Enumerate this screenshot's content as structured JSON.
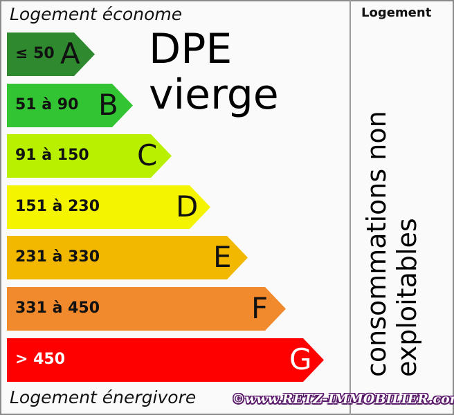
{
  "header": {
    "top_label": "Logement économe",
    "bottom_label": "Logement énergivore",
    "column_header": "Logement"
  },
  "classes": [
    {
      "letter": "A",
      "range": "≤ 50",
      "color": "#2f8a2f",
      "text_color": "#111111"
    },
    {
      "letter": "B",
      "range": "51 à 90",
      "color": "#33c433",
      "text_color": "#111111"
    },
    {
      "letter": "C",
      "range": "91 à 150",
      "color": "#b8f000",
      "text_color": "#111111"
    },
    {
      "letter": "D",
      "range": "151 à 230",
      "color": "#f4f400",
      "text_color": "#111111"
    },
    {
      "letter": "E",
      "range": "231 à 330",
      "color": "#f2b800",
      "text_color": "#111111"
    },
    {
      "letter": "F",
      "range": "331 à 450",
      "color": "#f08a2c",
      "text_color": "#111111"
    },
    {
      "letter": "G",
      "range": "> 450",
      "color": "#ff0000",
      "text_color": "#ffffff"
    }
  ],
  "overlay": {
    "main": "DPE vierge",
    "sub": "consommations non exploitables"
  },
  "watermark": "©www.RETZ-IMMOBILIER.com"
}
